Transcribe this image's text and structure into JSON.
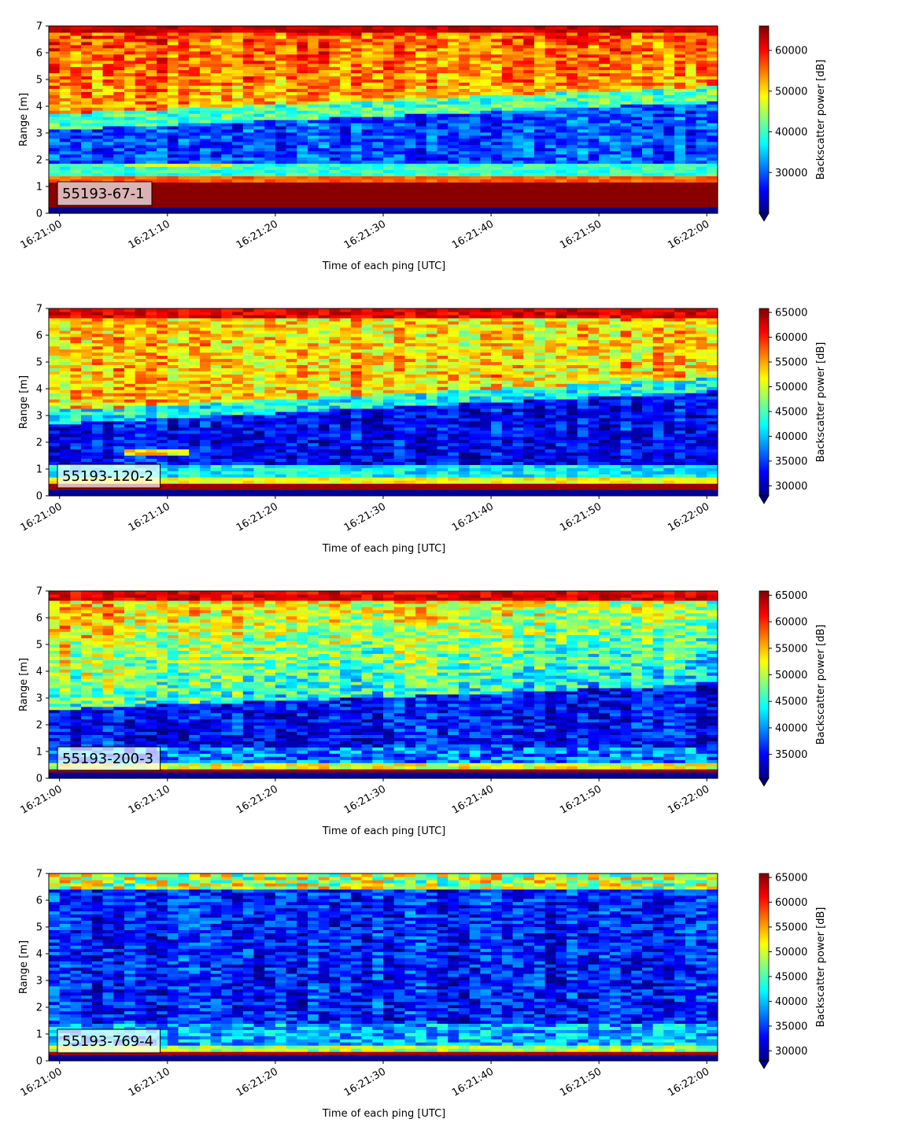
{
  "chart_data": [
    {
      "type": "heatmap",
      "label": "55193-67-1",
      "xlabel": "Time of each ping [UTC]",
      "ylabel": "Range [m]",
      "xticks": [
        "16:21:00",
        "16:21:10",
        "16:21:20",
        "16:21:30",
        "16:21:40",
        "16:21:50",
        "16:22:00"
      ],
      "xrange_seconds": [
        -1,
        61
      ],
      "ylim": [
        0,
        7
      ],
      "yticks": [
        0,
        1,
        2,
        3,
        4,
        5,
        6,
        7
      ],
      "colorbar_label": "Backscatter power [dB]",
      "colorbar_range": [
        20000,
        66000
      ],
      "colorbar_ticks": [
        30000,
        40000,
        50000,
        60000
      ],
      "colormap": "jet",
      "profile": "strong"
    },
    {
      "type": "heatmap",
      "label": "55193-120-2",
      "xlabel": "Time of each ping [UTC]",
      "ylabel": "Range [m]",
      "xticks": [
        "16:21:00",
        "16:21:10",
        "16:21:20",
        "16:21:30",
        "16:21:40",
        "16:21:50",
        "16:22:00"
      ],
      "xrange_seconds": [
        -1,
        61
      ],
      "ylim": [
        0,
        7
      ],
      "yticks": [
        0,
        1,
        2,
        3,
        4,
        5,
        6,
        7
      ],
      "colorbar_label": "Backscatter power [dB]",
      "colorbar_range": [
        28000,
        65800
      ],
      "colorbar_ticks": [
        30000,
        35000,
        40000,
        45000,
        50000,
        55000,
        60000,
        65000
      ],
      "colormap": "jet",
      "profile": "medium"
    },
    {
      "type": "heatmap",
      "label": "55193-200-3",
      "xlabel": "Time of each ping [UTC]",
      "ylabel": "Range [m]",
      "xticks": [
        "16:21:00",
        "16:21:10",
        "16:21:20",
        "16:21:30",
        "16:21:40",
        "16:21:50",
        "16:22:00"
      ],
      "xrange_seconds": [
        -1,
        61
      ],
      "ylim": [
        0,
        7
      ],
      "yticks": [
        0,
        1,
        2,
        3,
        4,
        5,
        6,
        7
      ],
      "colorbar_label": "Backscatter power [dB]",
      "colorbar_range": [
        30500,
        65800
      ],
      "colorbar_ticks": [
        35000,
        40000,
        45000,
        50000,
        55000,
        60000,
        65000
      ],
      "colormap": "jet",
      "profile": "weak"
    },
    {
      "type": "heatmap",
      "label": "55193-769-4",
      "xlabel": "Time of each ping [UTC]",
      "ylabel": "Range [m]",
      "xticks": [
        "16:21:00",
        "16:21:10",
        "16:21:20",
        "16:21:30",
        "16:21:40",
        "16:21:50",
        "16:22:00"
      ],
      "xrange_seconds": [
        -1,
        61
      ],
      "ylim": [
        0,
        7
      ],
      "yticks": [
        0,
        1,
        2,
        3,
        4,
        5,
        6,
        7
      ],
      "colorbar_label": "Backscatter power [dB]",
      "colorbar_range": [
        28000,
        65800
      ],
      "colorbar_ticks": [
        30000,
        35000,
        40000,
        45000,
        50000,
        55000,
        60000,
        65000
      ],
      "colormap": "jet",
      "profile": "faint"
    }
  ]
}
